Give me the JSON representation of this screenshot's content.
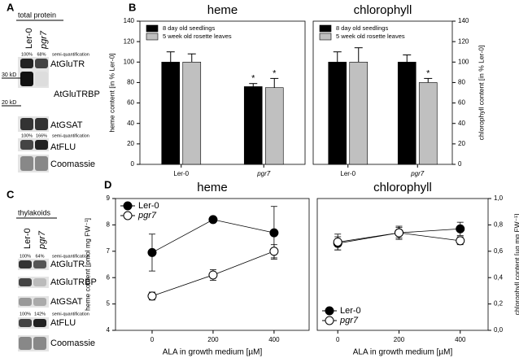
{
  "blot_A": {
    "panel": "A",
    "title": "total protein",
    "lanes": [
      "Ler-0",
      "pgr7"
    ],
    "quant1": [
      "100%",
      "68%"
    ],
    "quant1_label": "semi-quantification",
    "bands": [
      "AtGluTR",
      "AtGluTRBP",
      "AtGSAT",
      "AtFLU",
      "Coomassie"
    ],
    "markers": [
      "30 kD",
      "20 kD"
    ],
    "quant2": [
      "100%",
      "166%"
    ],
    "quant2_label": "semi-quantification"
  },
  "blot_C": {
    "panel": "C",
    "title": "thylakoids",
    "lanes": [
      "Ler-0",
      "pgr7"
    ],
    "quant1": [
      "100%",
      "64%"
    ],
    "quant1_label": "semi-quantification",
    "bands": [
      "AtGluTR",
      "AtGluTRBP",
      "AtGSAT",
      "AtFLU",
      "Coomassie"
    ],
    "quant2": [
      "100%",
      "142%"
    ],
    "quant2_label": "semi-quantification"
  },
  "chart_data": [
    {
      "panel": "B",
      "type": "bar",
      "title": "heme",
      "y_label": "heme content  [in % Ler-0]",
      "categories": [
        "Ler-0",
        "pgr7"
      ],
      "series": [
        {
          "name": "8 day old seedlings",
          "color": "#000000",
          "values": [
            100,
            76
          ],
          "errors": [
            10,
            3
          ],
          "annotations": [
            null,
            "*"
          ]
        },
        {
          "name": "5 week old rosette leaves",
          "color": "#c0c0c0",
          "values": [
            100,
            75
          ],
          "errors": [
            8,
            9
          ],
          "annotations": [
            null,
            "*"
          ]
        }
      ],
      "ylim": [
        0,
        140
      ],
      "yticks": [
        0,
        20,
        40,
        60,
        80,
        100,
        120,
        140
      ],
      "y_axis_side": "left",
      "legend": "upper left"
    },
    {
      "type": "bar",
      "title": "chlorophyll",
      "y_label": "chlorophyll content  [in % Ler-0]",
      "categories": [
        "Ler-0",
        "pgr7"
      ],
      "series": [
        {
          "name": "8 day old seedlings",
          "color": "#000000",
          "values": [
            100,
            100
          ],
          "errors": [
            10,
            7
          ],
          "annotations": [
            null,
            null
          ]
        },
        {
          "name": "5 week old rosette leaves",
          "color": "#c0c0c0",
          "values": [
            100,
            80
          ],
          "errors": [
            14,
            4
          ],
          "annotations": [
            null,
            "*"
          ]
        }
      ],
      "ylim": [
        0,
        140
      ],
      "yticks": [
        0,
        20,
        40,
        60,
        80,
        100,
        120,
        140
      ],
      "y_axis_side": "right",
      "legend": "upper left"
    },
    {
      "panel": "D",
      "type": "line",
      "title": "heme",
      "x_label": "ALA in growth medium [µM]",
      "y_label": "heme content [pmol mg FW⁻¹]",
      "x": [
        0,
        200,
        400
      ],
      "xlim": [
        -120,
        515
      ],
      "xticks": [
        0,
        200,
        400
      ],
      "ylim": [
        4,
        9
      ],
      "yticks": [
        4,
        5,
        6,
        7,
        8,
        9
      ],
      "y_axis_side": "left",
      "legend": "upper left",
      "series": [
        {
          "name": "Ler-0",
          "color": "#000000",
          "marker_fill": "#000000",
          "values": [
            6.95,
            8.2,
            7.7
          ],
          "errors": [
            0.7,
            0.05,
            1.0
          ]
        },
        {
          "name": "pgr7",
          "color": "#000000",
          "marker_fill": "#ffffff",
          "values": [
            5.3,
            6.1,
            7.0
          ],
          "errors": [
            0.15,
            0.2,
            0.25
          ]
        }
      ]
    },
    {
      "type": "line",
      "title": "chlorophyll",
      "x_label": "ALA in growth medium [µM]",
      "y_label": "chlorophyll content [µg mg FW⁻¹]",
      "x": [
        0,
        200,
        400
      ],
      "xlim": [
        -67,
        491
      ],
      "xticks": [
        0,
        200,
        400
      ],
      "ylim": [
        0,
        1.0
      ],
      "yticks": [
        {
          "value": 0,
          "label": "0,0"
        },
        {
          "value": 0.2,
          "label": "0,2"
        },
        {
          "value": 0.4,
          "label": "0,4"
        },
        {
          "value": 0.6,
          "label": "0,6"
        },
        {
          "value": 0.8,
          "label": "0,8"
        },
        {
          "value": 1.0,
          "label": "1,0"
        }
      ],
      "y_axis_side": "right",
      "legend": "lower left",
      "series": [
        {
          "name": "Ler-0",
          "color": "#000000",
          "marker_fill": "#000000",
          "values": [
            0.66,
            0.74,
            0.77
          ],
          "errors": [
            0.05,
            0.04,
            0.05
          ]
        },
        {
          "name": "pgr7",
          "color": "#000000",
          "marker_fill": "#ffffff",
          "values": [
            0.67,
            0.74,
            0.68
          ],
          "errors": [
            0.06,
            0.05,
            0.03
          ]
        }
      ]
    }
  ]
}
